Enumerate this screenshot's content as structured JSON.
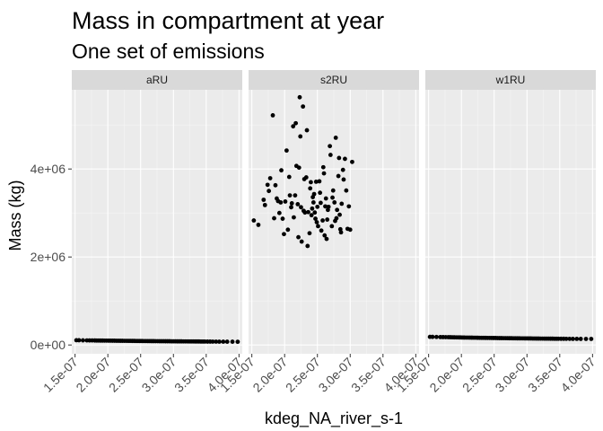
{
  "chart_data": {
    "type": "scatter",
    "title": "Mass in compartment at year",
    "subtitle": "One set of emissions",
    "xlabel": "kdeg_NA_river_s-1",
    "ylabel": "Mass (kg)",
    "xlim": [
      1.45e-07,
      4.05e-07
    ],
    "ylim": [
      -200000.0,
      5800000.0
    ],
    "x_ticks": [
      1.5e-07,
      2e-07,
      2.5e-07,
      3e-07,
      3.5e-07,
      4e-07
    ],
    "x_tick_labels": [
      "1.5e-07",
      "2.0e-07",
      "2.5e-07",
      "3.0e-07",
      "3.5e-07",
      "4.0e-07"
    ],
    "y_ticks": [
      0,
      2000000,
      4000000
    ],
    "y_tick_labels": [
      "0e+00",
      "2e+06",
      "4e+06"
    ],
    "grid": true,
    "point_color": "#000000",
    "panel_background": "#ebebeb",
    "strip_background": "#d9d9d9",
    "facets": [
      {
        "label": "aRU",
        "points": [
          [
            1.52e-07,
            108000
          ],
          [
            1.56e-07,
            107000
          ],
          [
            1.62e-07,
            105000
          ],
          [
            1.68e-07,
            104000
          ],
          [
            1.72e-07,
            103000
          ],
          [
            1.76e-07,
            103000
          ],
          [
            1.8e-07,
            102000
          ],
          [
            1.83e-07,
            101000
          ],
          [
            1.86e-07,
            101000
          ],
          [
            1.89e-07,
            100000
          ],
          [
            1.92e-07,
            100000
          ],
          [
            1.95e-07,
            99000
          ],
          [
            1.98e-07,
            99000
          ],
          [
            2.01e-07,
            98000
          ],
          [
            2.04e-07,
            98000
          ],
          [
            2.07e-07,
            97000
          ],
          [
            2.1e-07,
            97000
          ],
          [
            2.13e-07,
            96000
          ],
          [
            2.16e-07,
            96000
          ],
          [
            2.19e-07,
            95000
          ],
          [
            2.22e-07,
            95000
          ],
          [
            2.25e-07,
            94000
          ],
          [
            2.28e-07,
            94000
          ],
          [
            2.31e-07,
            93000
          ],
          [
            2.34e-07,
            93000
          ],
          [
            2.37e-07,
            92000
          ],
          [
            2.4e-07,
            92000
          ],
          [
            2.43e-07,
            91000
          ],
          [
            2.46e-07,
            91000
          ],
          [
            2.49e-07,
            90000
          ],
          [
            2.52e-07,
            90000
          ],
          [
            2.55e-07,
            89000
          ],
          [
            2.58e-07,
            89000
          ],
          [
            2.61e-07,
            88000
          ],
          [
            2.64e-07,
            88000
          ],
          [
            2.67e-07,
            87000
          ],
          [
            2.7e-07,
            87000
          ],
          [
            2.73e-07,
            86000
          ],
          [
            2.76e-07,
            86000
          ],
          [
            2.79e-07,
            85000
          ],
          [
            2.82e-07,
            85000
          ],
          [
            2.85e-07,
            85000
          ],
          [
            2.88e-07,
            84000
          ],
          [
            2.91e-07,
            84000
          ],
          [
            2.94e-07,
            84000
          ],
          [
            2.97e-07,
            83000
          ],
          [
            3e-07,
            83000
          ],
          [
            3.03e-07,
            83000
          ],
          [
            3.06e-07,
            82000
          ],
          [
            3.09e-07,
            82000
          ],
          [
            3.12e-07,
            82000
          ],
          [
            3.15e-07,
            81000
          ],
          [
            3.18e-07,
            81000
          ],
          [
            3.21e-07,
            81000
          ],
          [
            3.24e-07,
            80000
          ],
          [
            3.27e-07,
            80000
          ],
          [
            3.3e-07,
            80000
          ],
          [
            3.33e-07,
            79000
          ],
          [
            3.36e-07,
            79000
          ],
          [
            3.39e-07,
            79000
          ],
          [
            3.42e-07,
            78000
          ],
          [
            3.45e-07,
            78000
          ],
          [
            3.48e-07,
            78000
          ],
          [
            3.52e-07,
            77000
          ],
          [
            3.56e-07,
            77000
          ],
          [
            3.6e-07,
            76000
          ],
          [
            3.65e-07,
            76000
          ],
          [
            3.7e-07,
            75000
          ],
          [
            3.76e-07,
            75000
          ],
          [
            3.82e-07,
            74000
          ],
          [
            3.9e-07,
            74000
          ],
          [
            3.98e-07,
            73000
          ]
        ]
      },
      {
        "label": "s2RU",
        "points": [
          [
            1.53e-07,
            2830000
          ],
          [
            1.6e-07,
            2730000
          ],
          [
            1.68e-07,
            3300000
          ],
          [
            1.7e-07,
            3180000
          ],
          [
            1.74e-07,
            3640000
          ],
          [
            1.76e-07,
            3500000
          ],
          [
            1.78e-07,
            3790000
          ],
          [
            1.82e-07,
            5220000
          ],
          [
            1.84e-07,
            2880000
          ],
          [
            1.86e-07,
            3630000
          ],
          [
            1.88e-07,
            3330000
          ],
          [
            1.9e-07,
            3270000
          ],
          [
            1.92e-07,
            3000000
          ],
          [
            1.94e-07,
            3240000
          ],
          [
            1.95e-07,
            3970000
          ],
          [
            1.97e-07,
            2870000
          ],
          [
            1.99e-07,
            2520000
          ],
          [
            2.01e-07,
            3260000
          ],
          [
            2.03e-07,
            4420000
          ],
          [
            2.05e-07,
            2620000
          ],
          [
            2.07e-07,
            3820000
          ],
          [
            2.08e-07,
            3400000
          ],
          [
            2.1e-07,
            3130000
          ],
          [
            2.11e-07,
            3220000
          ],
          [
            2.13e-07,
            4970000
          ],
          [
            2.14e-07,
            2900000
          ],
          [
            2.16e-07,
            3400000
          ],
          [
            2.17e-07,
            5040000
          ],
          [
            2.18e-07,
            4070000
          ],
          [
            2.2e-07,
            3200000
          ],
          [
            2.21e-07,
            2450000
          ],
          [
            2.22e-07,
            4030000
          ],
          [
            2.23e-07,
            5630000
          ],
          [
            2.24e-07,
            4740000
          ],
          [
            2.25e-07,
            3130000
          ],
          [
            2.26e-07,
            2350000
          ],
          [
            2.28e-07,
            5420000
          ],
          [
            2.29e-07,
            3050000
          ],
          [
            2.3e-07,
            3770000
          ],
          [
            2.31e-07,
            3010000
          ],
          [
            2.33e-07,
            3810000
          ],
          [
            2.34e-07,
            4880000
          ],
          [
            2.35e-07,
            2250000
          ],
          [
            2.36e-07,
            3020000
          ],
          [
            2.38e-07,
            2540000
          ],
          [
            2.39e-07,
            3560000
          ],
          [
            2.4e-07,
            3700000
          ],
          [
            2.41e-07,
            2950000
          ],
          [
            2.42e-07,
            3100000
          ],
          [
            2.43e-07,
            3360000
          ],
          [
            2.44e-07,
            3240000
          ],
          [
            2.45e-07,
            3430000
          ],
          [
            2.46e-07,
            3010000
          ],
          [
            2.47e-07,
            2870000
          ],
          [
            2.48e-07,
            3710000
          ],
          [
            2.49e-07,
            2790000
          ],
          [
            2.5e-07,
            3140000
          ],
          [
            2.51e-07,
            2700000
          ],
          [
            2.53e-07,
            3720000
          ],
          [
            2.54e-07,
            3460000
          ],
          [
            2.55e-07,
            3230000
          ],
          [
            2.56e-07,
            2600000
          ],
          [
            2.58e-07,
            2830000
          ],
          [
            2.59e-07,
            4040000
          ],
          [
            2.6e-07,
            3900000
          ],
          [
            2.61e-07,
            2490000
          ],
          [
            2.62e-07,
            3150000
          ],
          [
            2.63e-07,
            3330000
          ],
          [
            2.64e-07,
            2410000
          ],
          [
            2.65e-07,
            2850000
          ],
          [
            2.66e-07,
            3070000
          ],
          [
            2.67e-07,
            3140000
          ],
          [
            2.69e-07,
            4520000
          ],
          [
            2.7e-07,
            4320000
          ],
          [
            2.72e-07,
            2700000
          ],
          [
            2.73e-07,
            3350000
          ],
          [
            2.74e-07,
            3510000
          ],
          [
            2.76e-07,
            3240000
          ],
          [
            2.77e-07,
            2820000
          ],
          [
            2.78e-07,
            4710000
          ],
          [
            2.79e-07,
            2880000
          ],
          [
            2.8e-07,
            3070000
          ],
          [
            2.82e-07,
            3840000
          ],
          [
            2.83e-07,
            4250000
          ],
          [
            2.84e-07,
            2960000
          ],
          [
            2.85e-07,
            2630000
          ],
          [
            2.86e-07,
            2560000
          ],
          [
            2.87e-07,
            3210000
          ],
          [
            2.89e-07,
            3980000
          ],
          [
            2.9e-07,
            3760000
          ],
          [
            2.92e-07,
            4230000
          ],
          [
            2.94e-07,
            3510000
          ],
          [
            2.96e-07,
            2640000
          ],
          [
            2.98e-07,
            3150000
          ],
          [
            3e-07,
            2620000
          ],
          [
            3.03e-07,
            4160000
          ]
        ]
      },
      {
        "label": "w1RU",
        "points": [
          [
            1.52e-07,
            185000
          ],
          [
            1.56e-07,
            184000
          ],
          [
            1.62e-07,
            182000
          ],
          [
            1.68e-07,
            180000
          ],
          [
            1.72e-07,
            179000
          ],
          [
            1.76e-07,
            178000
          ],
          [
            1.8e-07,
            177000
          ],
          [
            1.83e-07,
            176000
          ],
          [
            1.86e-07,
            175000
          ],
          [
            1.89e-07,
            174000
          ],
          [
            1.92e-07,
            173000
          ],
          [
            1.95e-07,
            172000
          ],
          [
            1.98e-07,
            171000
          ],
          [
            2.01e-07,
            170000
          ],
          [
            2.04e-07,
            169000
          ],
          [
            2.07e-07,
            168000
          ],
          [
            2.1e-07,
            168000
          ],
          [
            2.13e-07,
            167000
          ],
          [
            2.16e-07,
            166000
          ],
          [
            2.19e-07,
            165000
          ],
          [
            2.22e-07,
            165000
          ],
          [
            2.25e-07,
            164000
          ],
          [
            2.28e-07,
            163000
          ],
          [
            2.31e-07,
            162000
          ],
          [
            2.34e-07,
            162000
          ],
          [
            2.37e-07,
            161000
          ],
          [
            2.4e-07,
            160000
          ],
          [
            2.43e-07,
            160000
          ],
          [
            2.46e-07,
            159000
          ],
          [
            2.49e-07,
            158000
          ],
          [
            2.52e-07,
            158000
          ],
          [
            2.55e-07,
            157000
          ],
          [
            2.58e-07,
            156000
          ],
          [
            2.61e-07,
            156000
          ],
          [
            2.64e-07,
            155000
          ],
          [
            2.67e-07,
            155000
          ],
          [
            2.7e-07,
            154000
          ],
          [
            2.73e-07,
            153000
          ],
          [
            2.76e-07,
            153000
          ],
          [
            2.79e-07,
            152000
          ],
          [
            2.82e-07,
            152000
          ],
          [
            2.85e-07,
            151000
          ],
          [
            2.88e-07,
            151000
          ],
          [
            2.91e-07,
            150000
          ],
          [
            2.94e-07,
            150000
          ],
          [
            2.97e-07,
            149000
          ],
          [
            3e-07,
            149000
          ],
          [
            3.03e-07,
            148000
          ],
          [
            3.06e-07,
            148000
          ],
          [
            3.09e-07,
            147000
          ],
          [
            3.12e-07,
            147000
          ],
          [
            3.15e-07,
            146000
          ],
          [
            3.18e-07,
            146000
          ],
          [
            3.21e-07,
            145000
          ],
          [
            3.24e-07,
            145000
          ],
          [
            3.27e-07,
            144000
          ],
          [
            3.3e-07,
            144000
          ],
          [
            3.33e-07,
            144000
          ],
          [
            3.36e-07,
            143000
          ],
          [
            3.39e-07,
            143000
          ],
          [
            3.42e-07,
            142000
          ],
          [
            3.45e-07,
            142000
          ],
          [
            3.48e-07,
            142000
          ],
          [
            3.52e-07,
            141000
          ],
          [
            3.56e-07,
            141000
          ],
          [
            3.6e-07,
            140000
          ],
          [
            3.65e-07,
            140000
          ],
          [
            3.7e-07,
            139000
          ],
          [
            3.76e-07,
            139000
          ],
          [
            3.82e-07,
            138000
          ],
          [
            3.9e-07,
            137000
          ],
          [
            3.98e-07,
            137000
          ]
        ]
      }
    ]
  }
}
